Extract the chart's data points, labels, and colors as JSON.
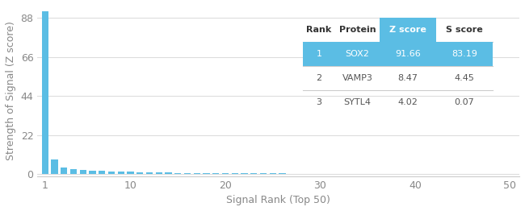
{
  "xlabel": "Signal Rank (Top 50)",
  "ylabel": "Strength of Signal (Z score)",
  "xlim": [
    0.2,
    51
  ],
  "ylim": [
    -1,
    95
  ],
  "yticks": [
    0,
    22,
    44,
    66,
    88
  ],
  "xticks": [
    1,
    10,
    20,
    30,
    40,
    50
  ],
  "bar_color": "#5bbde4",
  "n_bars": 50,
  "bar_heights": [
    91.66,
    8.47,
    4.02,
    3.1,
    2.6,
    2.2,
    1.9,
    1.7,
    1.5,
    1.35,
    1.2,
    1.1,
    1.0,
    0.92,
    0.85,
    0.79,
    0.73,
    0.68,
    0.64,
    0.6,
    0.57,
    0.54,
    0.51,
    0.48,
    0.46,
    0.44,
    0.42,
    0.4,
    0.38,
    0.37,
    0.35,
    0.34,
    0.33,
    0.31,
    0.3,
    0.29,
    0.28,
    0.27,
    0.26,
    0.25,
    0.24,
    0.23,
    0.23,
    0.22,
    0.21,
    0.21,
    0.2,
    0.19,
    0.19,
    0.18
  ],
  "table": {
    "col_headers": [
      "Rank",
      "Protein",
      "Z score",
      "S score"
    ],
    "rows": [
      [
        "1",
        "SOX2",
        "91.66",
        "83.19"
      ],
      [
        "2",
        "VAMP3",
        "8.47",
        "4.45"
      ],
      [
        "3",
        "SYTL4",
        "4.02",
        "0.07"
      ]
    ],
    "highlight_row": 0,
    "highlight_color": "#5bbde4",
    "header_highlight_col": 2,
    "text_color_highlight": "#ffffff",
    "text_color_normal": "#555555",
    "header_text_color": "#333333"
  },
  "bg_color": "#ffffff",
  "grid_color": "#dddddd",
  "axis_color": "#cccccc",
  "tick_color": "#888888",
  "font_size": 9
}
